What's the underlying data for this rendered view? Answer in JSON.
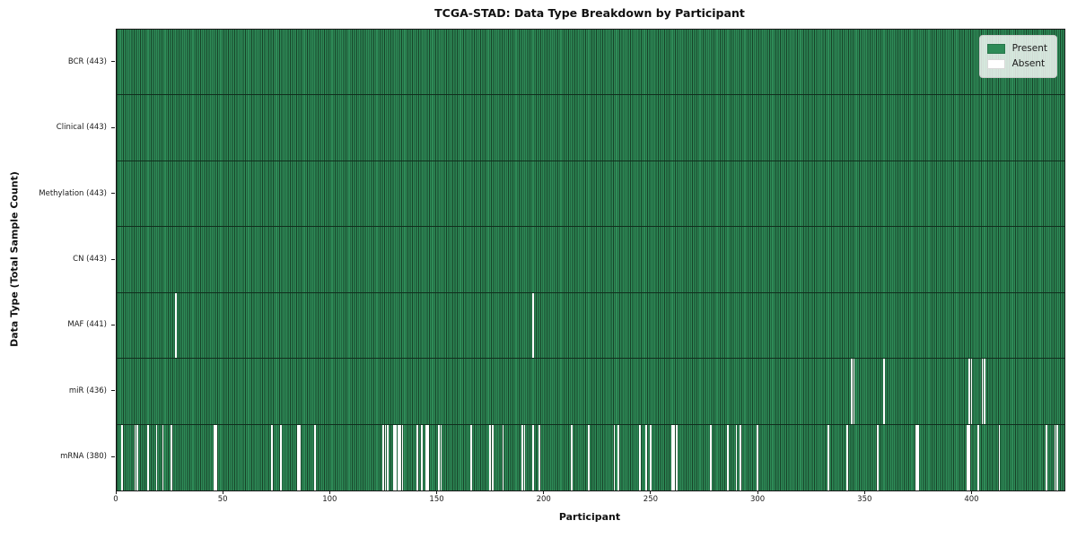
{
  "title": "TCGA-STAD: Data Type Breakdown by Participant",
  "xlabel": "Participant",
  "ylabel": "Data Type (Total Sample Count)",
  "legend": [
    {
      "label": "Present",
      "color": "#2e8b57"
    },
    {
      "label": "Absent",
      "color": "#ffffff"
    }
  ],
  "chart_data": {
    "type": "heatmap",
    "title": "TCGA-STAD: Data Type Breakdown by Participant",
    "xlabel": "Participant",
    "ylabel": "Data Type (Total Sample Count)",
    "x_range": [
      0,
      443
    ],
    "x_ticks": [
      0,
      50,
      100,
      150,
      200,
      250,
      300,
      350,
      400
    ],
    "n_participants": 443,
    "grid": false,
    "legend_position": "upper right",
    "legend_entries": [
      "Present",
      "Absent"
    ],
    "colors": {
      "present": "#2e8b57",
      "absent": "#ffffff",
      "cell_edge": "#174228",
      "row_divider": "#102e1d",
      "plot_border": "#1a1a1a"
    },
    "rows": [
      {
        "label": "BCR (443)",
        "data_type": "BCR",
        "present_count": 443,
        "absent_count": 0,
        "absent_participants": []
      },
      {
        "label": "Clinical (443)",
        "data_type": "Clinical",
        "present_count": 443,
        "absent_count": 0,
        "absent_participants": []
      },
      {
        "label": "Methylation (443)",
        "data_type": "Methylation",
        "present_count": 443,
        "absent_count": 0,
        "absent_participants": []
      },
      {
        "label": "CN (443)",
        "data_type": "CN",
        "present_count": 443,
        "absent_count": 0,
        "absent_participants": []
      },
      {
        "label": "MAF (441)",
        "data_type": "MAF",
        "present_count": 441,
        "absent_count": 2,
        "absent_participants": [
          27,
          194
        ]
      },
      {
        "label": "miR (436)",
        "data_type": "miR",
        "present_count": 436,
        "absent_count": 7,
        "absent_participants": [
          343,
          344,
          358,
          398,
          399,
          404,
          405
        ]
      },
      {
        "label": "mRNA (380)",
        "data_type": "mRNA",
        "present_count": 380,
        "absent_count": 63,
        "absent_participants": [
          2,
          8,
          9,
          14,
          18,
          21,
          25,
          45,
          46,
          72,
          76,
          84,
          85,
          92,
          124,
          125,
          126,
          129,
          130,
          131,
          132,
          133,
          140,
          142,
          144,
          145,
          150,
          151,
          165,
          174,
          175,
          180,
          189,
          190,
          194,
          197,
          212,
          220,
          232,
          234,
          244,
          247,
          249,
          259,
          260,
          261,
          277,
          285,
          289,
          291,
          299,
          332,
          341,
          355,
          373,
          374,
          397,
          398,
          402,
          412,
          434,
          438,
          439
        ]
      }
    ]
  }
}
